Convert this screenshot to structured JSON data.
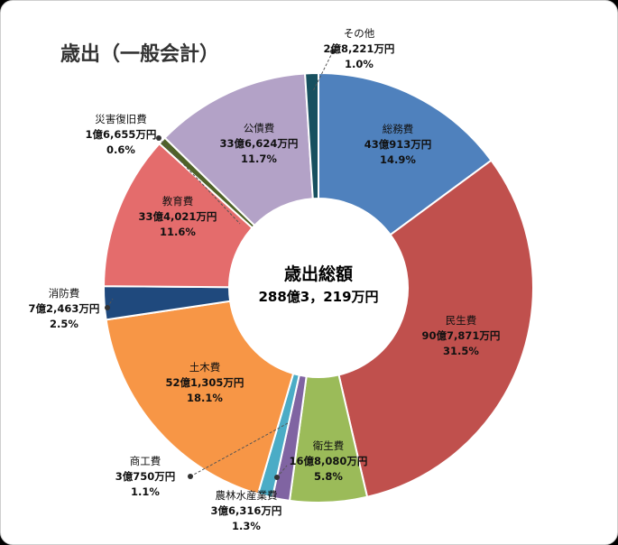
{
  "chart_data": {
    "type": "pie",
    "variant": "donut",
    "title": "歳出（一般会計）",
    "center_title": "歳出総額",
    "center_value": "288億3，219万円",
    "unit": "%",
    "start": "top, clockwise",
    "slices": [
      {
        "label": "総務費",
        "amount": "43億913万円",
        "percent": "14.9%",
        "value": 14.9,
        "color": "#4F81BD"
      },
      {
        "label": "民生費",
        "amount": "90億7,871万円",
        "percent": "31.5%",
        "value": 31.5,
        "color": "#C0504D"
      },
      {
        "label": "衛生費",
        "amount": "16億8,080万円",
        "percent": "5.8%",
        "value": 5.8,
        "color": "#9BBB59"
      },
      {
        "label": "農林水産業費",
        "amount": "3億6,316万円",
        "percent": "1.3%",
        "value": 1.3,
        "color": "#8064A2"
      },
      {
        "label": "商工費",
        "amount": "3億750万円",
        "percent": "1.1%",
        "value": 1.1,
        "color": "#4BACC6"
      },
      {
        "label": "土木費",
        "amount": "52億1,305万円",
        "percent": "18.1%",
        "value": 18.1,
        "color": "#F79646"
      },
      {
        "label": "消防費",
        "amount": "7億2,463万円",
        "percent": "2.5%",
        "value": 2.5,
        "color": "#1F497D"
      },
      {
        "label": "教育費",
        "amount": "33億4,021万円",
        "percent": "11.6%",
        "value": 11.6,
        "color": "#E46C6C"
      },
      {
        "label": "災害復旧費",
        "amount": "1億6,655万円",
        "percent": "0.6%",
        "value": 0.6,
        "color": "#4F6228"
      },
      {
        "label": "公債費",
        "amount": "33億6,624万円",
        "percent": "11.7%",
        "value": 11.7,
        "color": "#B3A2C7"
      },
      {
        "label": "その他",
        "amount": "2億8,221万円",
        "percent": "1.0%",
        "value": 1.0,
        "color": "#17505F"
      }
    ]
  }
}
